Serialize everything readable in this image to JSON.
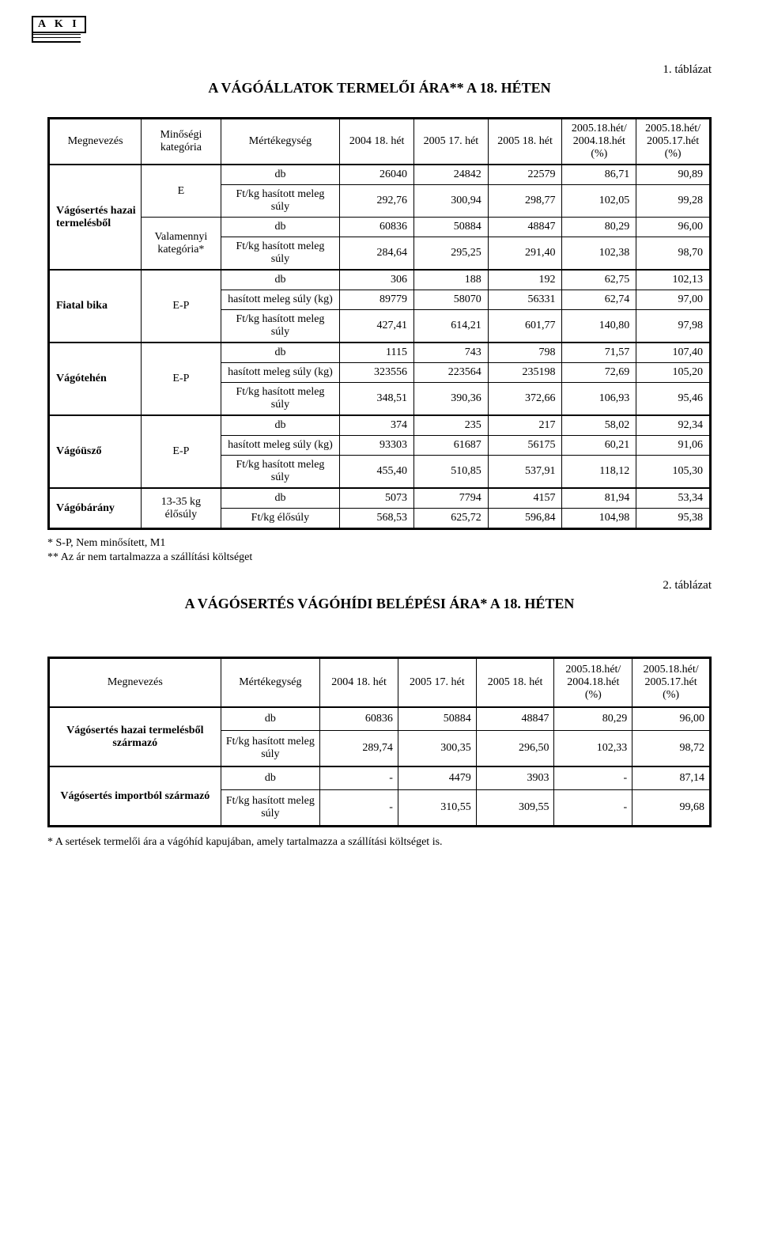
{
  "logo_text": "A K I",
  "table1": {
    "caption": "1. táblázat",
    "title": "A VÁGÓÁLLATOK TERMELŐI ÁRA** A 18. HÉTEN",
    "headers": {
      "megnevezes": "Megnevezés",
      "minosegi": "Minőségi kategória",
      "mertek": "Mértékegység",
      "c2004": "2004 18. hét",
      "c2005_17": "2005 17. hét",
      "c2005_18": "2005 18. hét",
      "ratio1": "2005.18.hét/ 2004.18.hét (%)",
      "ratio2": "2005.18.hét/ 2005.17.hét (%)"
    },
    "labels": {
      "db": "db",
      "ftkg_has": "Ft/kg hasított meleg súly",
      "has_kg": "hasított meleg súly (kg)",
      "ftkg_elo": "Ft/kg élősúly"
    },
    "groups": [
      {
        "name": "Vágósertés hazai termelésből",
        "cats": [
          {
            "cat": "E",
            "rows": [
              {
                "unit": "db",
                "v": [
                  "26040",
                  "24842",
                  "22579",
                  "86,71",
                  "90,89"
                ]
              },
              {
                "unit": "ftkg_has",
                "v": [
                  "292,76",
                  "300,94",
                  "298,77",
                  "102,05",
                  "99,28"
                ]
              }
            ]
          },
          {
            "cat": "Valamennyi kategória*",
            "rows": [
              {
                "unit": "db",
                "v": [
                  "60836",
                  "50884",
                  "48847",
                  "80,29",
                  "96,00"
                ]
              },
              {
                "unit": "ftkg_has",
                "v": [
                  "284,64",
                  "295,25",
                  "291,40",
                  "102,38",
                  "98,70"
                ]
              }
            ]
          }
        ]
      },
      {
        "name": "Fiatal bika",
        "cats": [
          {
            "cat": "E-P",
            "rows": [
              {
                "unit": "db",
                "v": [
                  "306",
                  "188",
                  "192",
                  "62,75",
                  "102,13"
                ]
              },
              {
                "unit": "has_kg",
                "v": [
                  "89779",
                  "58070",
                  "56331",
                  "62,74",
                  "97,00"
                ]
              },
              {
                "unit": "ftkg_has",
                "v": [
                  "427,41",
                  "614,21",
                  "601,77",
                  "140,80",
                  "97,98"
                ]
              }
            ]
          }
        ]
      },
      {
        "name": "Vágótehén",
        "cats": [
          {
            "cat": "E-P",
            "rows": [
              {
                "unit": "db",
                "v": [
                  "1115",
                  "743",
                  "798",
                  "71,57",
                  "107,40"
                ]
              },
              {
                "unit": "has_kg",
                "v": [
                  "323556",
                  "223564",
                  "235198",
                  "72,69",
                  "105,20"
                ]
              },
              {
                "unit": "ftkg_has",
                "v": [
                  "348,51",
                  "390,36",
                  "372,66",
                  "106,93",
                  "95,46"
                ]
              }
            ]
          }
        ]
      },
      {
        "name": "Vágóüsző",
        "cats": [
          {
            "cat": "E-P",
            "rows": [
              {
                "unit": "db",
                "v": [
                  "374",
                  "235",
                  "217",
                  "58,02",
                  "92,34"
                ]
              },
              {
                "unit": "has_kg",
                "v": [
                  "93303",
                  "61687",
                  "56175",
                  "60,21",
                  "91,06"
                ]
              },
              {
                "unit": "ftkg_has",
                "v": [
                  "455,40",
                  "510,85",
                  "537,91",
                  "118,12",
                  "105,30"
                ]
              }
            ]
          }
        ]
      },
      {
        "name": "Vágóbárány",
        "cats": [
          {
            "cat": "13-35 kg élősúly",
            "rows": [
              {
                "unit": "db",
                "v": [
                  "5073",
                  "7794",
                  "4157",
                  "81,94",
                  "53,34"
                ]
              },
              {
                "unit": "ftkg_elo",
                "v": [
                  "568,53",
                  "625,72",
                  "596,84",
                  "104,98",
                  "95,38"
                ]
              }
            ]
          }
        ]
      }
    ],
    "footnote1": "* S-P, Nem minősített, M1",
    "footnote2": "** Az ár nem tartalmazza a szállítási költséget"
  },
  "table2": {
    "caption": "2. táblázat",
    "title": "A VÁGÓSERTÉS VÁGÓHÍDI BELÉPÉSI ÁRA* A 18. HÉTEN",
    "headers": {
      "megnevezes": "Megnevezés",
      "mertek": "Mértékegység",
      "c2004": "2004 18. hét",
      "c2005_17": "2005 17. hét",
      "c2005_18": "2005 18. hét",
      "ratio1": "2005.18.hét/ 2004.18.hét (%)",
      "ratio2": "2005.18.hét/ 2005.17.hét (%)"
    },
    "labels": {
      "db": "db",
      "ftkg_has": "Ft/kg hasított meleg súly"
    },
    "groups": [
      {
        "name": "Vágósertés hazai termelésből származó",
        "rows": [
          {
            "unit": "db",
            "v": [
              "60836",
              "50884",
              "48847",
              "80,29",
              "96,00"
            ]
          },
          {
            "unit": "ftkg_has",
            "v": [
              "289,74",
              "300,35",
              "296,50",
              "102,33",
              "98,72"
            ]
          }
        ]
      },
      {
        "name": "Vágósertés importból származó",
        "rows": [
          {
            "unit": "db",
            "v": [
              "-",
              "4479",
              "3903",
              "-",
              "87,14"
            ]
          },
          {
            "unit": "ftkg_has",
            "v": [
              "-",
              "310,55",
              "309,55",
              "-",
              "99,68"
            ]
          }
        ]
      }
    ],
    "footnote": "* A sertések termelői ára a vágóhíd kapujában, amely tartalmazza a szállítási költséget is."
  }
}
